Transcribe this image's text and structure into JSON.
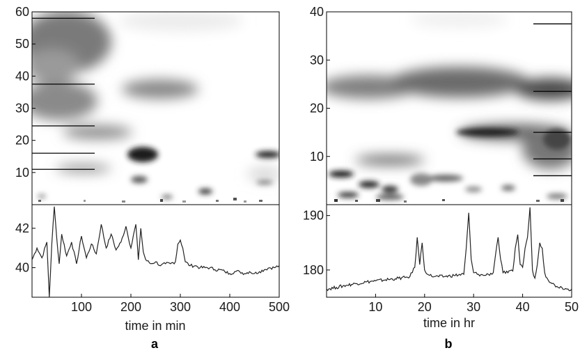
{
  "chart_data": [
    {
      "panel_label": "a",
      "type": "heatmap",
      "xlabel": "time in min",
      "heatmap": {
        "ylim": [
          0,
          60
        ],
        "yticks": [
          10,
          20,
          30,
          40,
          50,
          60
        ],
        "ridge_markers": [
          58,
          37.5,
          24.5,
          16,
          11
        ]
      },
      "trace": {
        "type": "line",
        "xlim": [
          0,
          500
        ],
        "ylim": [
          38.5,
          43.2
        ],
        "xticks": [
          100,
          200,
          300,
          400,
          500
        ],
        "yticks": [
          40,
          42
        ],
        "series": [
          {
            "x": [
              0,
              10,
              20,
              30,
              35,
              40,
              45,
              50,
              55,
              60,
              70,
              80,
              90,
              100,
              110,
              120,
              130,
              140,
              150,
              160,
              170,
              180,
              190,
              200,
              210,
              215,
              220,
              225,
              230,
              240,
              250,
              260,
              270,
              280,
              290,
              295,
              300,
              305,
              310,
              320,
              330,
              340,
              350,
              360,
              370,
              380,
              390,
              400,
              410,
              420,
              430,
              440,
              450,
              460,
              470,
              480,
              490,
              500
            ],
            "y": [
              40.4,
              41.0,
              40.5,
              41.3,
              38.5,
              41.2,
              43.1,
              41.5,
              40.2,
              41.7,
              40.6,
              41.3,
              40.2,
              41.6,
              40.5,
              41.2,
              40.7,
              42.2,
              41.0,
              41.7,
              40.9,
              41.3,
              42.1,
              41.0,
              42.2,
              40.4,
              42.0,
              40.8,
              40.4,
              40.2,
              40.3,
              40.1,
              40.2,
              40.2,
              40.3,
              41.2,
              41.4,
              41.0,
              40.3,
              40.1,
              40.1,
              40.0,
              40.0,
              40.0,
              39.9,
              39.9,
              39.8,
              39.7,
              39.8,
              39.8,
              39.7,
              39.8,
              39.7,
              39.8,
              39.9,
              40.0,
              40.0,
              40.1
            ]
          }
        ]
      }
    },
    {
      "panel_label": "b",
      "type": "heatmap",
      "xlabel": "time in hr",
      "heatmap": {
        "ylim": [
          0,
          40
        ],
        "yticks": [
          10,
          20,
          30,
          40
        ],
        "ridge_markers": [
          37.5,
          23.5,
          15,
          9.5,
          6
        ]
      },
      "trace": {
        "type": "line",
        "xlim": [
          0,
          50
        ],
        "ylim": [
          175,
          192
        ],
        "xticks": [
          10,
          20,
          30,
          40,
          50
        ],
        "yticks": [
          180,
          190
        ],
        "series": [
          {
            "x": [
              0,
              2,
              4,
              6,
              8,
              10,
              12,
              14,
              16,
              17,
              18,
              18.5,
              19,
              19.5,
              20,
              21,
              22,
              24,
              26,
              28,
              28.5,
              29,
              29.5,
              30,
              31,
              32,
              33,
              34,
              34.5,
              35,
              35.5,
              36,
              37,
              38,
              38.5,
              39,
              39.5,
              40,
              40.5,
              41,
              41.5,
              42,
              42.5,
              43,
              43.5,
              44,
              44.5,
              45,
              46,
              47,
              48,
              49,
              50
            ],
            "y": [
              176.5,
              176.8,
              177.2,
              177.5,
              177.8,
              178.0,
              178.2,
              178.4,
              178.6,
              178.8,
              180.5,
              186.0,
              181.0,
              185.0,
              180.0,
              179.0,
              178.8,
              178.8,
              179.0,
              179.2,
              184.0,
              190.5,
              182.0,
              179.5,
              179.2,
              179.0,
              179.2,
              179.5,
              183.0,
              186.0,
              182.0,
              179.5,
              179.5,
              179.8,
              184.0,
              186.5,
              181.0,
              180.5,
              184.0,
              186.0,
              191.5,
              180.0,
              178.5,
              181.0,
              185.0,
              184.0,
              179.5,
              178.5,
              177.5,
              177.0,
              176.8,
              176.5,
              176.5
            ]
          }
        ]
      }
    }
  ]
}
